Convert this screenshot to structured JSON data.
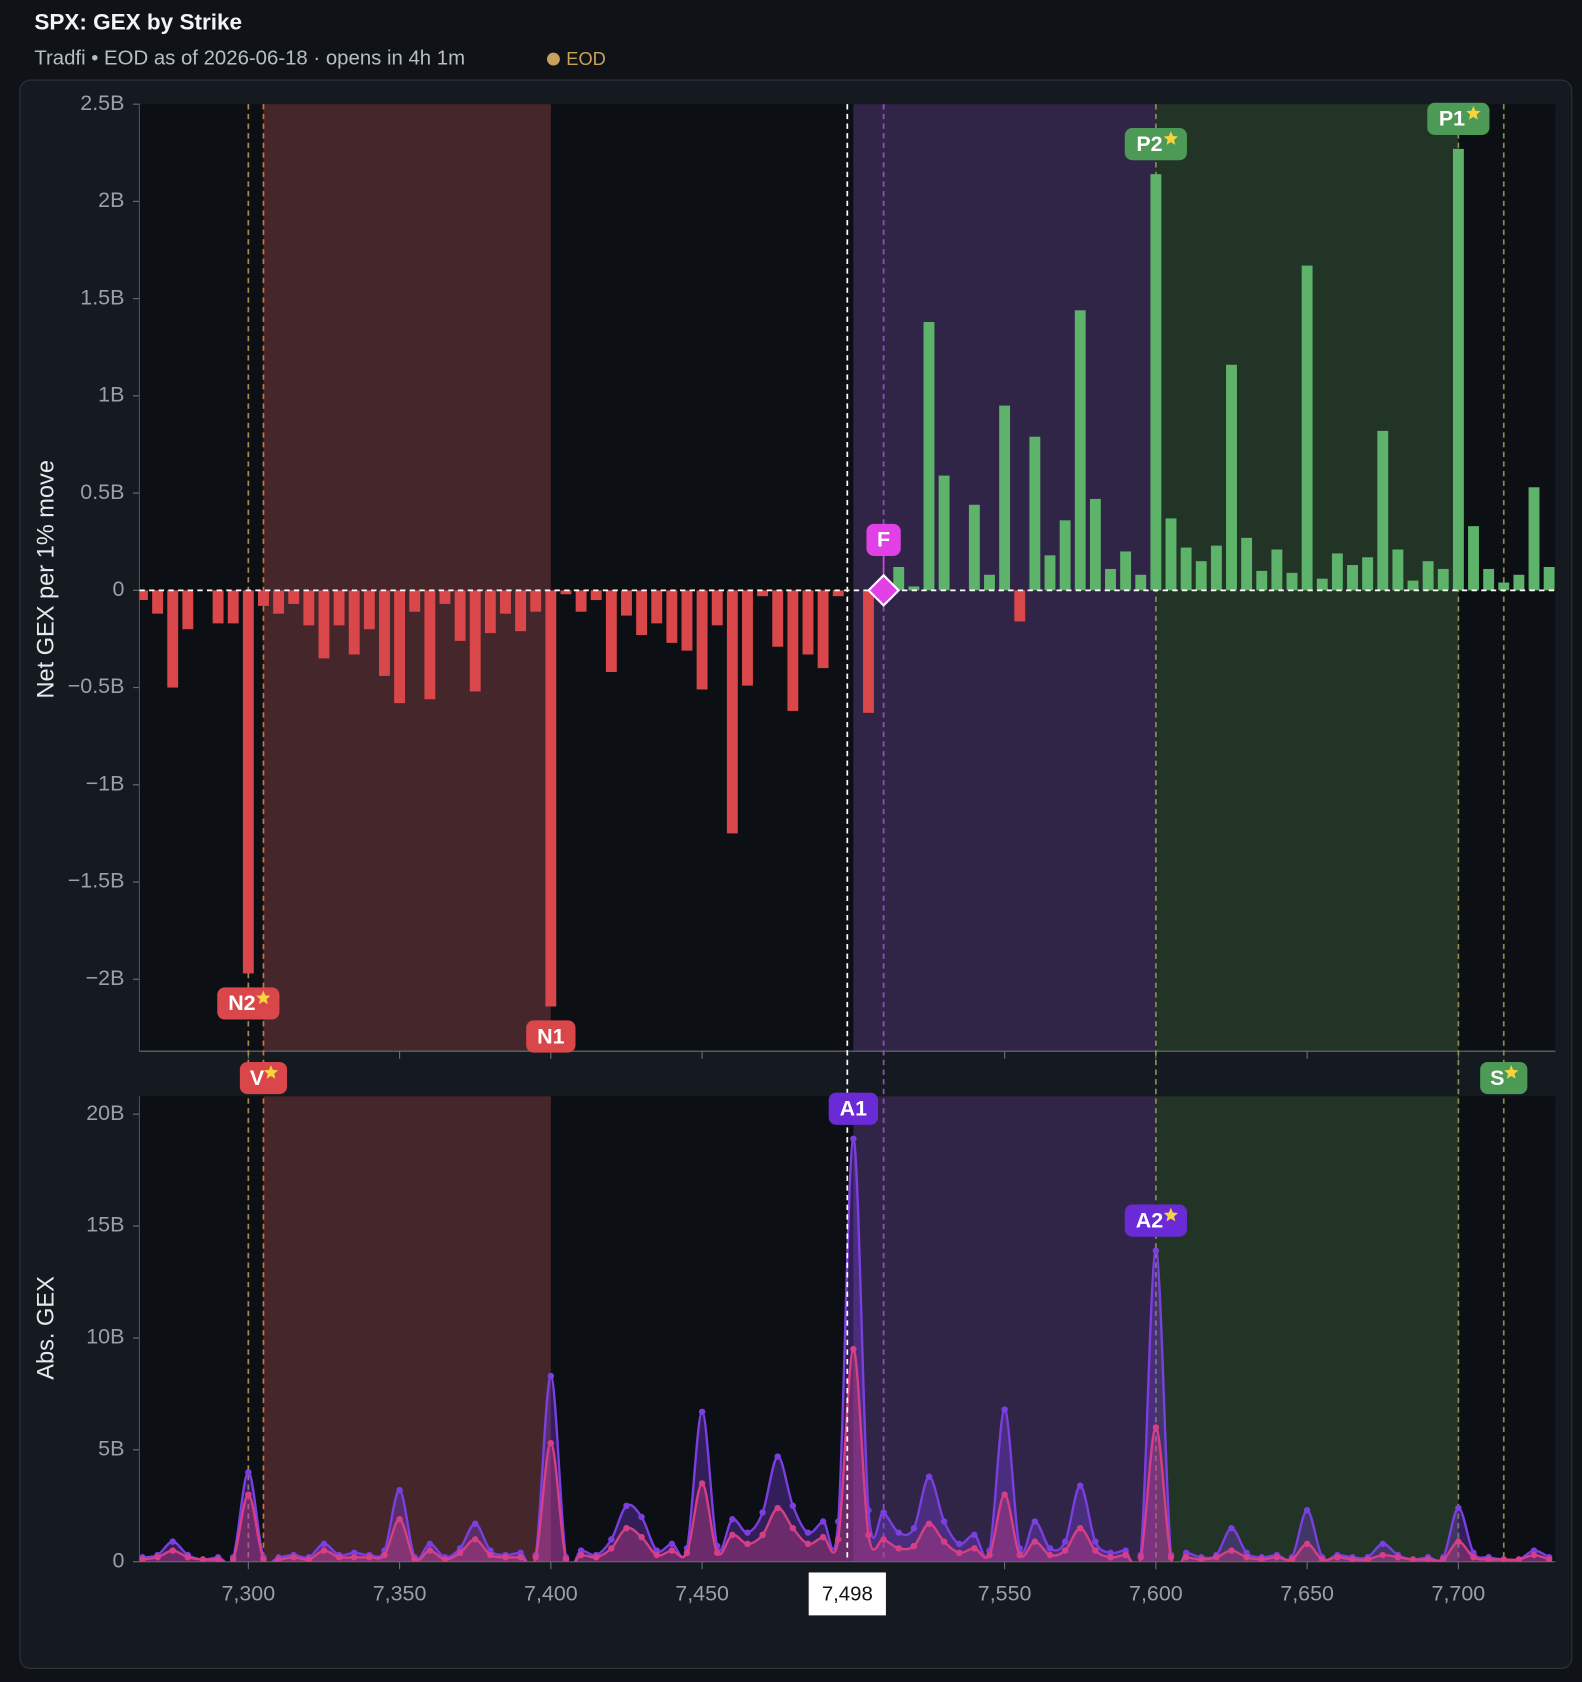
{
  "chart_data": {
    "type": "gex",
    "title": "SPX: GEX by Strike",
    "subtitle": "Tradfi • EOD as of 2026-06-18 · opens in 4h 1m",
    "status": "EOD",
    "x": [
      7265,
      7270,
      7275,
      7280,
      7285,
      7290,
      7295,
      7300,
      7305,
      7310,
      7315,
      7320,
      7325,
      7330,
      7335,
      7340,
      7345,
      7350,
      7355,
      7360,
      7365,
      7370,
      7375,
      7380,
      7385,
      7390,
      7395,
      7400,
      7405,
      7410,
      7415,
      7420,
      7425,
      7430,
      7435,
      7440,
      7445,
      7450,
      7455,
      7460,
      7465,
      7470,
      7475,
      7480,
      7485,
      7490,
      7495,
      7500,
      7505,
      7510,
      7515,
      7520,
      7525,
      7530,
      7535,
      7540,
      7545,
      7550,
      7555,
      7560,
      7565,
      7570,
      7575,
      7580,
      7585,
      7590,
      7595,
      7600,
      7605,
      7610,
      7615,
      7620,
      7625,
      7630,
      7635,
      7640,
      7645,
      7650,
      7655,
      7660,
      7665,
      7670,
      7675,
      7680,
      7685,
      7690,
      7695,
      7700,
      7705,
      7710,
      7715,
      7720,
      7725,
      7730
    ],
    "xlim": [
      7264,
      7732
    ],
    "xticks": [
      {
        "value": 7300,
        "label": "7,300"
      },
      {
        "value": 7350,
        "label": "7,350"
      },
      {
        "value": 7400,
        "label": "7,400"
      },
      {
        "value": 7450,
        "label": "7,450"
      },
      {
        "value": 7550,
        "label": "7,550"
      },
      {
        "value": 7600,
        "label": "7,600"
      },
      {
        "value": 7650,
        "label": "7,650"
      },
      {
        "value": 7700,
        "label": "7,700"
      }
    ],
    "spot": {
      "value": 7498,
      "label": "7,498"
    },
    "panels": [
      {
        "type": "bar",
        "ylabel": "Net GEX per 1% move",
        "pos_color": "#5db36a",
        "neg_color": "#d9474a",
        "ylim": [
          -2.37,
          2.5
        ],
        "yticks": [
          {
            "value": 2.5,
            "label": "2.5B"
          },
          {
            "value": 2,
            "label": "2B"
          },
          {
            "value": 1.5,
            "label": "1.5B"
          },
          {
            "value": 1,
            "label": "1B"
          },
          {
            "value": 0.5,
            "label": "0.5B"
          },
          0,
          {
            "value": -0.5,
            "label": "−0.5B"
          },
          {
            "value": -1,
            "label": "−1B"
          },
          {
            "value": -1.5,
            "label": "−1.5B"
          },
          {
            "value": -2,
            "label": "−2B"
          }
        ],
        "values": [
          -0.05,
          -0.12,
          -0.5,
          -0.2,
          0,
          -0.17,
          -0.17,
          -1.97,
          -0.08,
          -0.12,
          -0.07,
          -0.18,
          -0.35,
          -0.18,
          -0.33,
          -0.2,
          -0.44,
          -0.58,
          -0.11,
          -0.56,
          -0.07,
          -0.26,
          -0.52,
          -0.22,
          -0.12,
          -0.21,
          -0.11,
          -2.14,
          -0.02,
          -0.11,
          -0.05,
          -0.42,
          -0.13,
          -0.23,
          -0.17,
          -0.27,
          -0.31,
          -0.51,
          -0.18,
          -1.25,
          -0.49,
          -0.03,
          -0.29,
          -0.62,
          -0.33,
          -0.4,
          -0.03,
          0,
          -0.63,
          0.03,
          0.12,
          0.02,
          1.38,
          0.59,
          0,
          0.44,
          0.08,
          0.95,
          -0.16,
          0.79,
          0.18,
          0.36,
          1.44,
          0.47,
          0.11,
          0.2,
          0.08,
          2.14,
          0.37,
          0.22,
          0.15,
          0.23,
          1.16,
          0.27,
          0.1,
          0.21,
          0.09,
          1.67,
          0.06,
          0.19,
          0.13,
          0.17,
          0.82,
          0.21,
          0.05,
          0.15,
          0.11,
          2.27,
          0.33,
          0.11,
          0.04,
          0.08,
          0.53,
          0.12
        ]
      },
      {
        "type": "area",
        "ylabel": "Abs. GEX",
        "ylim": [
          0,
          20.8
        ],
        "yticks": [
          {
            "value": 20,
            "label": "20B"
          },
          {
            "value": 15,
            "label": "15B"
          },
          {
            "value": 10,
            "label": "10B"
          },
          {
            "value": 5,
            "label": "5B"
          },
          0
        ],
        "series": [
          {
            "color": "#7b3fe0",
            "values": [
              0.2,
              0.3,
              0.9,
              0.3,
              0.1,
              0.2,
              0.2,
              4.0,
              0.2,
              0.2,
              0.3,
              0.2,
              0.8,
              0.3,
              0.4,
              0.3,
              0.5,
              3.2,
              0.2,
              0.8,
              0.2,
              0.6,
              1.7,
              0.5,
              0.3,
              0.4,
              0.3,
              8.3,
              0.2,
              0.5,
              0.3,
              1.0,
              2.5,
              2.0,
              0.5,
              0.8,
              0.6,
              6.7,
              0.7,
              1.9,
              1.3,
              2.2,
              4.7,
              2.5,
              1.3,
              1.8,
              1.8,
              18.9,
              2.3,
              2.2,
              1.3,
              1.5,
              3.8,
              1.8,
              0.8,
              1.2,
              0.5,
              6.8,
              0.6,
              1.8,
              0.6,
              0.9,
              3.4,
              0.9,
              0.4,
              0.5,
              0.3,
              13.9,
              0.3,
              0.4,
              0.2,
              0.3,
              1.5,
              0.4,
              0.2,
              0.3,
              0.2,
              2.3,
              0.2,
              0.3,
              0.2,
              0.2,
              0.8,
              0.3,
              0.1,
              0.2,
              0.2,
              2.4,
              0.4,
              0.2,
              0.1,
              0.1,
              0.5,
              0.2
            ]
          },
          {
            "color": "#d63f86",
            "values": [
              0.1,
              0.2,
              0.5,
              0.2,
              0.1,
              0.1,
              0.1,
              3.0,
              0.1,
              0.1,
              0.2,
              0.1,
              0.5,
              0.2,
              0.2,
              0.2,
              0.3,
              1.9,
              0.1,
              0.5,
              0.1,
              0.4,
              1.0,
              0.3,
              0.2,
              0.2,
              0.2,
              5.3,
              0.1,
              0.3,
              0.2,
              0.6,
              1.5,
              1.1,
              0.3,
              0.5,
              0.4,
              3.5,
              0.4,
              1.2,
              0.8,
              1.2,
              2.4,
              1.5,
              0.8,
              1.1,
              1.0,
              9.5,
              1.2,
              1.0,
              0.6,
              0.7,
              1.7,
              0.9,
              0.4,
              0.6,
              0.3,
              3.0,
              0.3,
              0.9,
              0.3,
              0.5,
              1.5,
              0.5,
              0.2,
              0.3,
              0.2,
              6.0,
              0.2,
              0.2,
              0.1,
              0.2,
              0.5,
              0.2,
              0.1,
              0.2,
              0.1,
              0.8,
              0.1,
              0.2,
              0.1,
              0.1,
              0.3,
              0.2,
              0.1,
              0.1,
              0.1,
              0.9,
              0.2,
              0.1,
              0.1,
              0.1,
              0.3,
              0.1
            ]
          }
        ]
      }
    ],
    "zones": [
      {
        "from": 7305,
        "to": 7400,
        "color": "#45262a"
      },
      {
        "from": 7500,
        "to": 7600,
        "color": "#302447"
      },
      {
        "from": 7600,
        "to": 7700,
        "color": "#213426"
      }
    ],
    "levels": [
      {
        "label": "N2",
        "strike": 7300,
        "starred": true,
        "anchor": "bar-end",
        "color": "#d9474a",
        "line_color": "#a8884a"
      },
      {
        "label": "V",
        "strike": 7305,
        "starred": true,
        "anchor": "between",
        "color": "#d9474a",
        "line_color": "#d0703a"
      },
      {
        "label": "N1",
        "strike": 7400,
        "starred": false,
        "anchor": "bar-end",
        "color": "#d9474a"
      },
      {
        "label": "F",
        "strike": 7510,
        "starred": false,
        "anchor": "zero",
        "color": "#e040e6",
        "line_color": "#9a4bc0"
      },
      {
        "label": "A1",
        "strike": 7500,
        "starred": false,
        "anchor": "peak",
        "color": "#6a2bd6"
      },
      {
        "label": "P2",
        "strike": 7600,
        "starred": true,
        "anchor": "bar-end",
        "color": "#4c9a55",
        "line_color": "#8a8a50"
      },
      {
        "label": "A2",
        "strike": 7600,
        "starred": true,
        "anchor": "peak",
        "color": "#6a2bd6"
      },
      {
        "label": "P1",
        "strike": 7700,
        "starred": true,
        "anchor": "bar-end",
        "color": "#4c9a55",
        "line_color": "#8a8a50"
      },
      {
        "label": "S",
        "strike": 7715,
        "starred": true,
        "anchor": "between",
        "color": "#4c9a55",
        "line_color": "#8a8a50"
      }
    ]
  }
}
